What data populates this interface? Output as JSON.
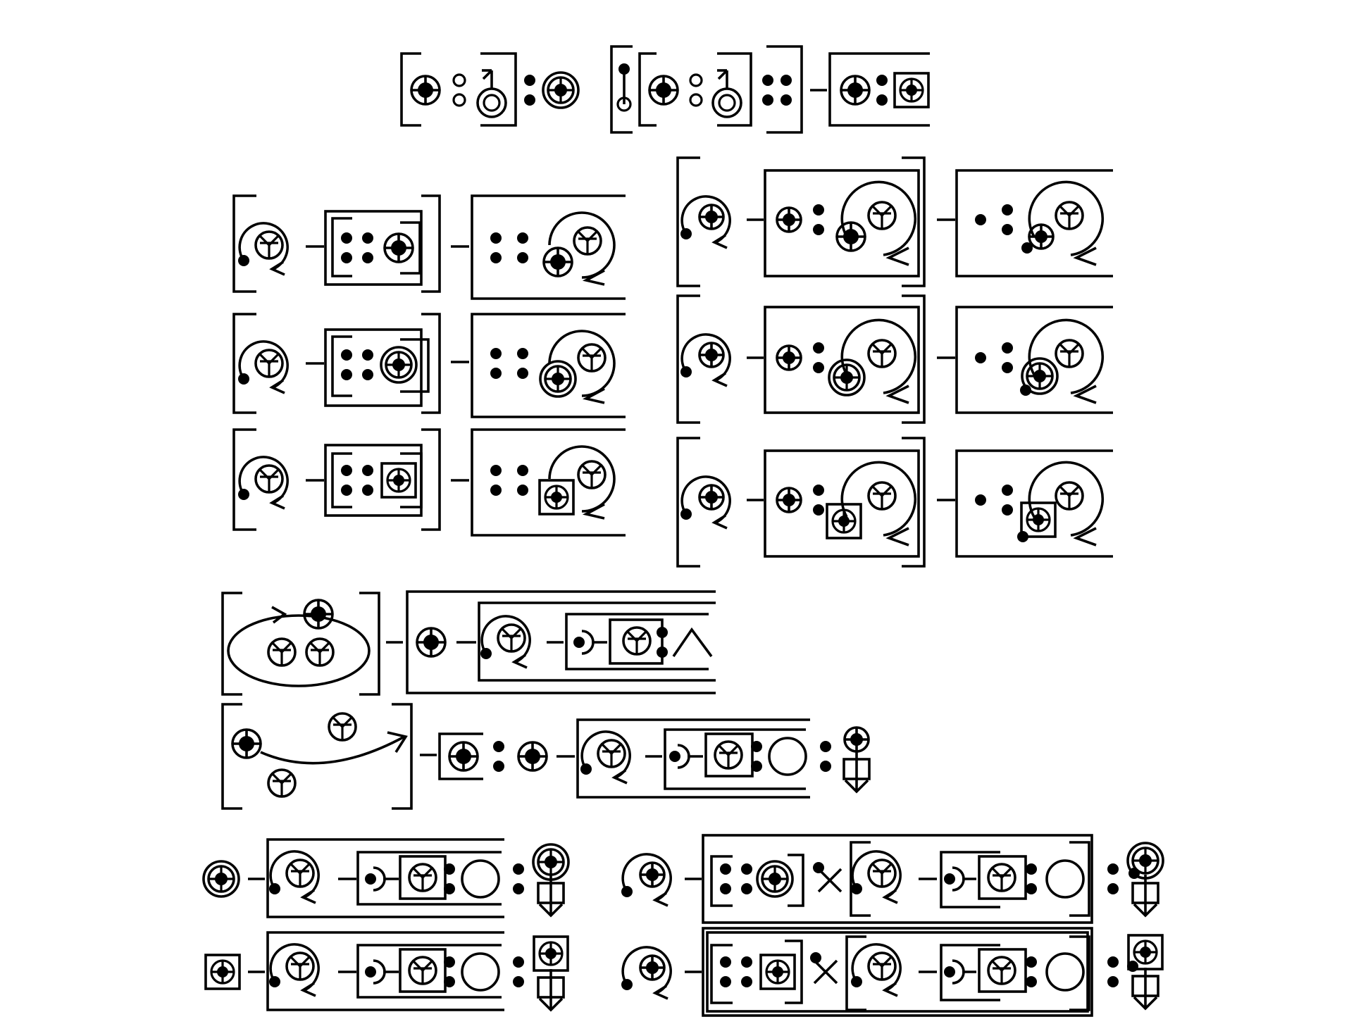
{
  "figure": {
    "kind": "symbolic glyph diagram",
    "text_labels": [],
    "colors": {
      "ink": "#000000",
      "background": "#ffffff"
    },
    "glyph_names": [
      "crosshair-disc-icon",
      "double-ring-crosshair-icon",
      "boxed-crosshair-icon",
      "y-circle-icon",
      "spiral-arrow-icon",
      "colon-dots-icon",
      "open-ring-icon",
      "arrow-ring-icon",
      "half-bracket-icon",
      "triangle-icon",
      "cross-icon",
      "down-arrow-icon",
      "ellipse-cycle-icon"
    ]
  }
}
